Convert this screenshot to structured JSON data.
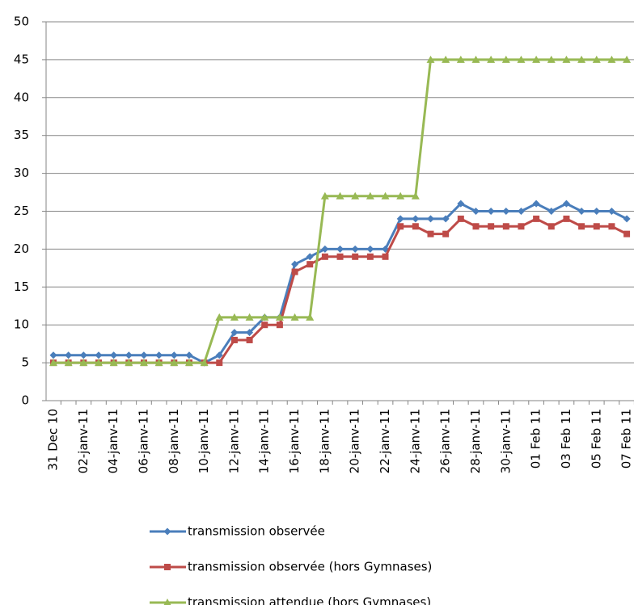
{
  "chart_data": {
    "type": "line",
    "categories": [
      "31 Dec 10",
      null,
      "02-janv-11",
      null,
      "04-janv-11",
      null,
      "06-janv-11",
      null,
      "08-janv-11",
      null,
      "10-janv-11",
      null,
      "12-janv-11",
      null,
      "14-janv-11",
      null,
      "16-janv-11",
      null,
      "18-janv-11",
      null,
      "20-janv-11",
      null,
      "22-janv-11",
      null,
      "24-janv-11",
      null,
      "26-janv-11",
      null,
      "28-janv-11",
      null,
      "30-janv-11",
      null,
      "01 Feb 11",
      null,
      "03 Feb 11",
      null,
      "05 Feb 11",
      null,
      "07 Feb 11"
    ],
    "series": [
      {
        "name": "transmission observée",
        "color": "#4a7ebb",
        "marker": "diamond",
        "values": [
          6,
          6,
          6,
          6,
          6,
          6,
          6,
          6,
          6,
          6,
          5,
          6,
          9,
          9,
          11,
          11,
          18,
          19,
          20,
          20,
          20,
          20,
          20,
          24,
          24,
          24,
          24,
          26,
          25,
          25,
          25,
          25,
          26,
          25,
          26,
          25,
          25,
          25,
          24
        ]
      },
      {
        "name": "transmission observée (hors Gymnases)",
        "color": "#be4b48",
        "marker": "square",
        "values": [
          5,
          5,
          5,
          5,
          5,
          5,
          5,
          5,
          5,
          5,
          5,
          5,
          8,
          8,
          10,
          10,
          17,
          18,
          19,
          19,
          19,
          19,
          19,
          23,
          23,
          22,
          22,
          24,
          23,
          23,
          23,
          23,
          24,
          23,
          24,
          23,
          23,
          23,
          22
        ]
      },
      {
        "name": "transmission attendue (hors Gymnases)",
        "color": "#98b954",
        "marker": "triangle",
        "values": [
          5,
          5,
          5,
          5,
          5,
          5,
          5,
          5,
          5,
          5,
          5,
          11,
          11,
          11,
          11,
          11,
          11,
          11,
          27,
          27,
          27,
          27,
          27,
          27,
          27,
          45,
          45,
          45,
          45,
          45,
          45,
          45,
          45,
          45,
          45,
          45,
          45,
          45,
          45
        ]
      }
    ],
    "ylim": [
      0,
      50
    ],
    "yticks": [
      0,
      5,
      10,
      15,
      20,
      25,
      30,
      35,
      40,
      45,
      50
    ],
    "grid": true,
    "legend": "bottom"
  }
}
